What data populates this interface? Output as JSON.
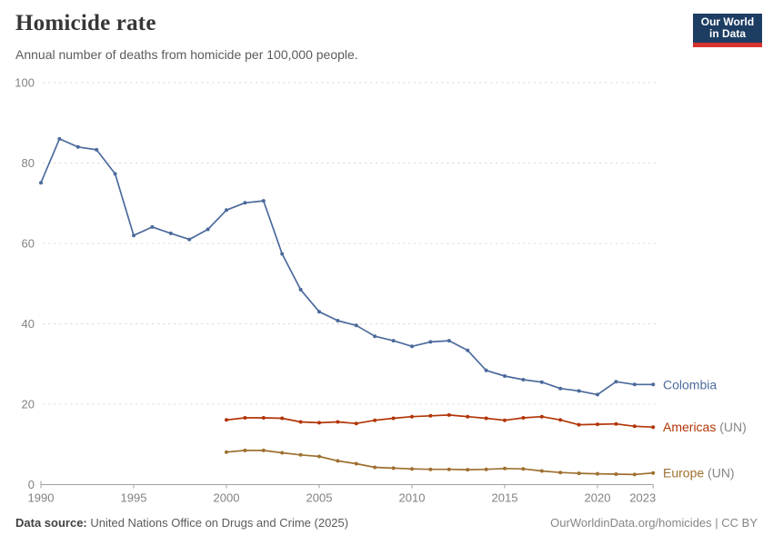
{
  "header": {
    "title": "Homicide rate",
    "subtitle": "Annual number of deaths from homicide per 100,000 people."
  },
  "logo": {
    "line1": "Our World",
    "line2": "in Data",
    "bg_color": "#1d3d63",
    "accent_color": "#d7332e"
  },
  "chart_data": {
    "type": "line",
    "title": "Homicide rate",
    "xlabel": "",
    "ylabel": "Annual deaths from homicide per 100,000 people",
    "xlim": [
      1990,
      2023
    ],
    "ylim": [
      0,
      100
    ],
    "yticks": [
      0,
      20,
      40,
      60,
      80,
      100
    ],
    "xticks": [
      1990,
      1995,
      2000,
      2005,
      2010,
      2015,
      2020,
      2023
    ],
    "grid": "horizontal dashed",
    "legend_position": "end-of-line labels, right side",
    "series": [
      {
        "name": "Colombia",
        "suffix": "",
        "color": "#4C6A9C",
        "start_year": 1990,
        "values": [
          75.1,
          86.0,
          84.0,
          83.3,
          77.3,
          62.0,
          64.1,
          62.5,
          61.0,
          63.5,
          68.3,
          70.1,
          70.6,
          57.4,
          48.5,
          43.0,
          40.8,
          39.6,
          36.9,
          35.8,
          34.4,
          35.5,
          35.8,
          33.4,
          28.4,
          27.0,
          26.1,
          25.5,
          23.9,
          23.3,
          22.4,
          25.6,
          24.9,
          24.9
        ]
      },
      {
        "name": "Americas",
        "suffix": " (UN)",
        "color": "#B13507",
        "start_year": 2000,
        "values": [
          16.1,
          16.6,
          16.6,
          16.5,
          15.6,
          15.4,
          15.6,
          15.2,
          16.0,
          16.5,
          16.9,
          17.1,
          17.3,
          16.9,
          16.5,
          16.0,
          16.6,
          16.9,
          16.1,
          14.9,
          15.0,
          15.1,
          14.5,
          14.3
        ]
      },
      {
        "name": "Europe",
        "suffix": " (UN)",
        "color": "#9E7030",
        "start_year": 2000,
        "values": [
          8.1,
          8.5,
          8.5,
          7.9,
          7.4,
          7.0,
          5.9,
          5.2,
          4.3,
          4.1,
          3.9,
          3.8,
          3.8,
          3.7,
          3.8,
          4.0,
          3.9,
          3.4,
          3.0,
          2.8,
          2.7,
          2.6,
          2.5,
          2.9
        ]
      }
    ],
    "suffix_color": "#858585",
    "axis_text_color": "#828282",
    "gridline_color": "#dcdcdc",
    "axis_line_color": "#a1a1a1"
  },
  "footer": {
    "source_label": "Data source:",
    "source_text": " United Nations Office on Drugs and Crime (2025)",
    "credit": "OurWorldinData.org/homicides | CC BY"
  }
}
